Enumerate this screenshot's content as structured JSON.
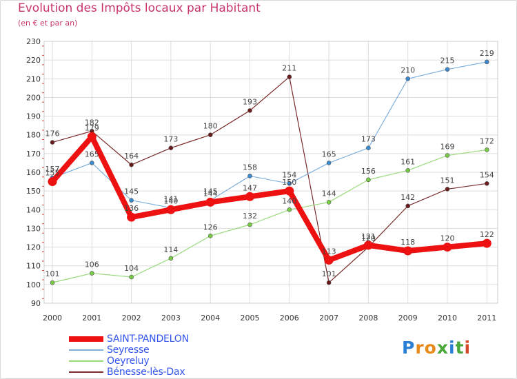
{
  "title": "Evolution des Impôts locaux par Habitant",
  "subtitle": "(en € et par an)",
  "logo": {
    "text": "Proxiti",
    "colors": [
      "#2a7fd4",
      "#e88a1a",
      "#e88a1a",
      "#4aa83a",
      "#2a7fd4",
      "#4aa83a",
      "#d44a2a"
    ]
  },
  "chart_data": {
    "type": "line",
    "title": "Evolution des Impôts locaux par Habitant",
    "subtitle": "(en € et par an)",
    "xlabel": "",
    "ylabel": "",
    "categories": [
      "2000",
      "2001",
      "2002",
      "2003",
      "2004",
      "2005",
      "2006",
      "2007",
      "2008",
      "2009",
      "2010",
      "2011"
    ],
    "ylim": [
      90,
      230
    ],
    "yticks": [
      90,
      100,
      110,
      120,
      130,
      140,
      150,
      160,
      170,
      180,
      190,
      200,
      210,
      220,
      230
    ],
    "grid": true,
    "legend_position": "bottom-left",
    "series": [
      {
        "name": "Bénesse-lès-Dax",
        "color": "#7a2a2a",
        "point_color": "#6a1a1a",
        "values": [
          176,
          182,
          164,
          173,
          180,
          193,
          211,
          101,
          120,
          142,
          151,
          154
        ],
        "labels": [
          "176",
          "182",
          "164",
          "173",
          "180",
          "193",
          "211",
          "101",
          "120",
          "142",
          "151",
          "154"
        ]
      },
      {
        "name": "Oeyreluy",
        "color": "#99d97a",
        "point_color": "#77cc44",
        "values": [
          101,
          106,
          104,
          114,
          126,
          132,
          140,
          144,
          156,
          161,
          169,
          172
        ],
        "labels": [
          "101",
          "106",
          "104",
          "114",
          "126",
          "132",
          "140",
          "144",
          "156",
          "161",
          "169",
          "172"
        ]
      },
      {
        "name": "Seyresse",
        "color": "#7fb0dd",
        "point_color": "#3a8ad0",
        "values": [
          157,
          165,
          145,
          141,
          145,
          158,
          154,
          165,
          173,
          210,
          215,
          219
        ],
        "labels": [
          "157",
          "165",
          "145",
          "141",
          "145",
          "158",
          "154",
          "165",
          "173",
          "210",
          "215",
          "219"
        ]
      },
      {
        "name": "SAINT-PANDELON",
        "color": "#ee1111",
        "point_color": "#ee1111",
        "values": [
          155,
          179,
          136,
          140,
          144,
          147,
          150,
          113,
          121,
          118,
          120,
          122
        ],
        "labels": [
          "155",
          "179",
          "136",
          "140",
          "144",
          "147",
          "150",
          "113",
          "121",
          "118",
          "120",
          "122"
        ]
      }
    ],
    "legend": [
      {
        "name": "SAINT-PANDELON",
        "color": "#ee1111"
      },
      {
        "name": "Seyresse",
        "color": "#7fb0dd"
      },
      {
        "name": "Oeyreluy",
        "color": "#99d97a"
      },
      {
        "name": "Bénesse-lès-Dax",
        "color": "#7a2a2a"
      }
    ]
  }
}
